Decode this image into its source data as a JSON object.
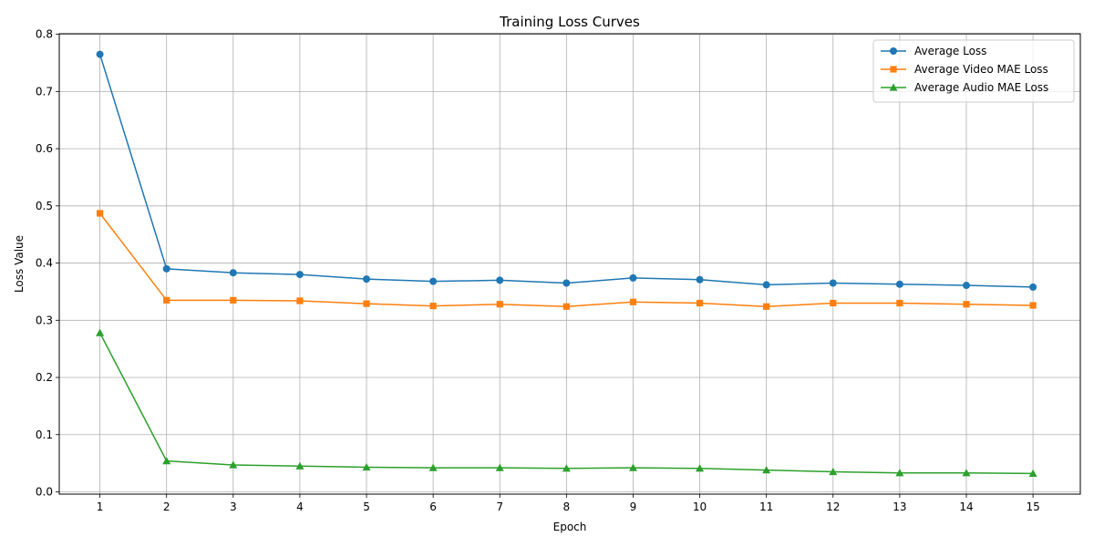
{
  "chart_data": {
    "type": "line",
    "title": "Training Loss Curves",
    "xlabel": "Epoch",
    "ylabel": "Loss Value",
    "x": [
      1,
      2,
      3,
      4,
      5,
      6,
      7,
      8,
      9,
      10,
      11,
      12,
      13,
      14,
      15
    ],
    "xticks": [
      "1",
      "2",
      "3",
      "4",
      "5",
      "6",
      "7",
      "8",
      "9",
      "10",
      "11",
      "12",
      "13",
      "14",
      "15"
    ],
    "yticks": [
      0.0,
      0.1,
      0.2,
      0.3,
      0.4,
      0.5,
      0.6,
      0.7,
      0.8
    ],
    "ytick_labels": [
      "0.0",
      "0.1",
      "0.2",
      "0.3",
      "0.4",
      "0.5",
      "0.6",
      "0.7",
      "0.8"
    ],
    "xlim": [
      0.39,
      15.71
    ],
    "ylim": [
      -0.004,
      0.801
    ],
    "grid": true,
    "legend_position": "top-right",
    "series": [
      {
        "name": "Average Loss",
        "color": "#1f77b4",
        "marker": "circle",
        "values": [
          0.765,
          0.39,
          0.383,
          0.38,
          0.372,
          0.368,
          0.37,
          0.365,
          0.374,
          0.371,
          0.362,
          0.365,
          0.363,
          0.361,
          0.358
        ]
      },
      {
        "name": "Average Video MAE Loss",
        "color": "#ff7f0e",
        "marker": "square",
        "values": [
          0.487,
          0.335,
          0.335,
          0.334,
          0.329,
          0.325,
          0.328,
          0.324,
          0.332,
          0.33,
          0.324,
          0.33,
          0.33,
          0.328,
          0.326
        ]
      },
      {
        "name": "Average Audio MAE Loss",
        "color": "#2ca02c",
        "marker": "triangle",
        "values": [
          0.278,
          0.054,
          0.047,
          0.045,
          0.043,
          0.042,
          0.042,
          0.041,
          0.042,
          0.041,
          0.038,
          0.035,
          0.033,
          0.033,
          0.032
        ]
      }
    ]
  }
}
